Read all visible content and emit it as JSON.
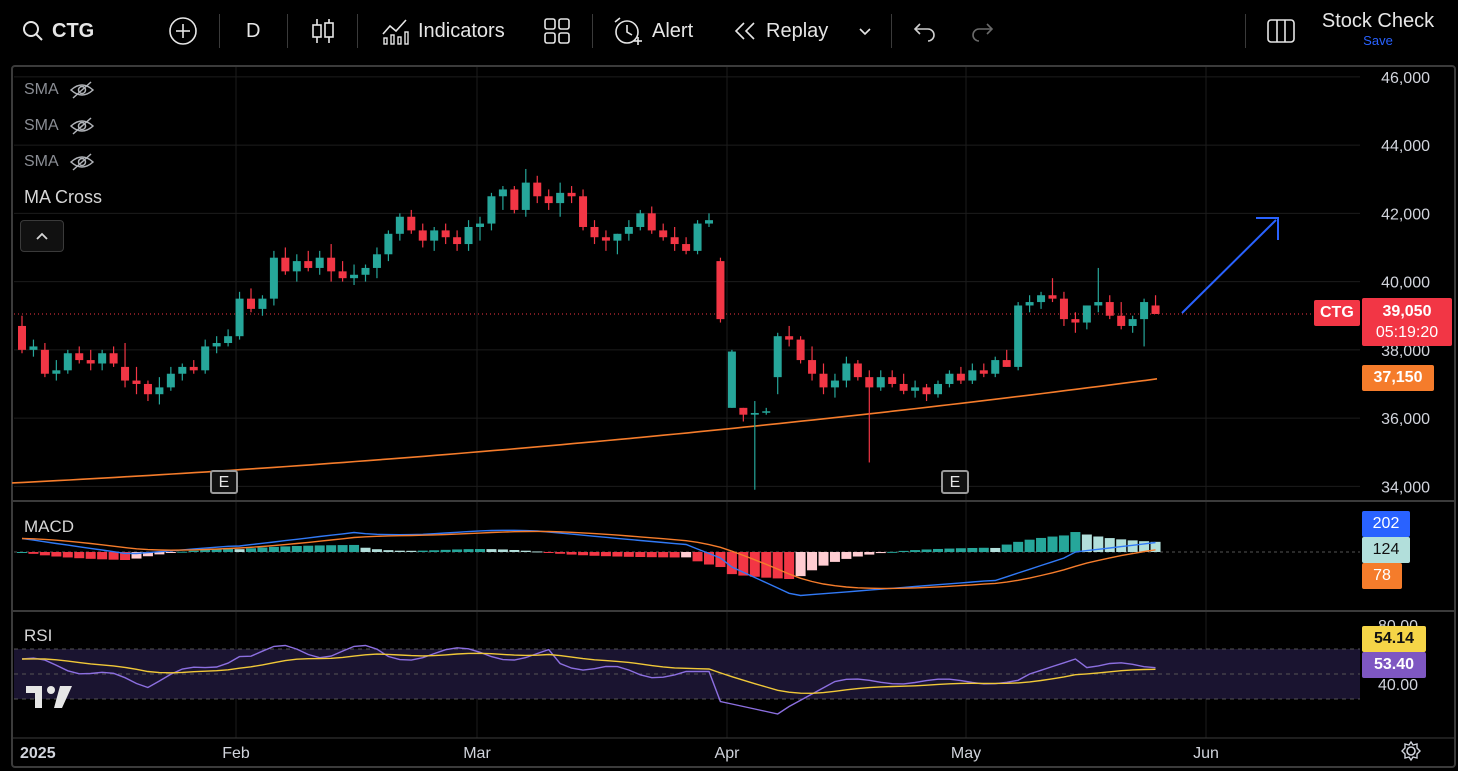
{
  "toolbar": {
    "symbol": "CTG",
    "interval": "D",
    "indicators": "Indicators",
    "alert": "Alert",
    "replay": "Replay",
    "layout_name": "Stock Check",
    "save": "Save"
  },
  "legend": {
    "sma": [
      "SMA",
      "SMA",
      "SMA"
    ],
    "ma_cross": "MA Cross",
    "macd": "MACD",
    "rsi": "RSI"
  },
  "badges": {
    "symbol": "CTG",
    "price": "39,050",
    "countdown": "05:19:20",
    "ma": "37,150",
    "macd_a": "202",
    "macd_b": "124",
    "macd_c": "78",
    "rsi_a": "54.14",
    "rsi_b": "53.40",
    "earnings": "E"
  },
  "colors": {
    "up": "#26a69a",
    "down": "#f23645",
    "ma": "#f57c2b",
    "macd": "#3179f5",
    "signal": "#f57c2b",
    "rsi": "#8c6fe0",
    "rsi_ma": "#f0c838",
    "arrow": "#2962ff"
  },
  "chart_data": {
    "type": "candlestick",
    "symbol": "CTG",
    "interval": "D",
    "y_ticks": [
      34000,
      36000,
      38000,
      40000,
      42000,
      44000,
      46000
    ],
    "y_tick_labels": [
      "34,000",
      "36,000",
      "38,000",
      "40,000",
      "42,000",
      "44,000",
      "46,000"
    ],
    "ylim": [
      33600,
      46200
    ],
    "x_labels": [
      "2025",
      "Feb",
      "Mar",
      "Apr",
      "May",
      "Jun"
    ],
    "last_price": 39050,
    "ma_last": 37150,
    "candles": [
      [
        38700,
        39000,
        37900,
        38000
      ],
      [
        38000,
        38300,
        37800,
        38100
      ],
      [
        38000,
        38200,
        37200,
        37300
      ],
      [
        37300,
        37700,
        37100,
        37400
      ],
      [
        37400,
        38000,
        37300,
        37900
      ],
      [
        37900,
        38100,
        37600,
        37700
      ],
      [
        37700,
        38000,
        37400,
        37600
      ],
      [
        37600,
        38000,
        37400,
        37900
      ],
      [
        37900,
        38100,
        37500,
        37600
      ],
      [
        37500,
        38200,
        36900,
        37100
      ],
      [
        37100,
        37500,
        36700,
        37000
      ],
      [
        37000,
        37100,
        36500,
        36700
      ],
      [
        36700,
        37200,
        36400,
        36900
      ],
      [
        36900,
        37500,
        36800,
        37300
      ],
      [
        37300,
        37600,
        37100,
        37500
      ],
      [
        37500,
        37700,
        37300,
        37400
      ],
      [
        37400,
        38300,
        37300,
        38100
      ],
      [
        38100,
        38400,
        37900,
        38200
      ],
      [
        38200,
        38600,
        38100,
        38400
      ],
      [
        38400,
        39700,
        38300,
        39500
      ],
      [
        39500,
        39800,
        39100,
        39200
      ],
      [
        39200,
        39600,
        39000,
        39500
      ],
      [
        39500,
        40900,
        39300,
        40700
      ],
      [
        40700,
        41000,
        40200,
        40300
      ],
      [
        40300,
        40800,
        40000,
        40600
      ],
      [
        40600,
        40900,
        40300,
        40400
      ],
      [
        40400,
        40900,
        40200,
        40700
      ],
      [
        40700,
        41100,
        40000,
        40300
      ],
      [
        40300,
        40600,
        40000,
        40100
      ],
      [
        40100,
        40500,
        39900,
        40200
      ],
      [
        40200,
        40500,
        40000,
        40400
      ],
      [
        40400,
        41000,
        40100,
        40800
      ],
      [
        40800,
        41500,
        40600,
        41400
      ],
      [
        41400,
        42000,
        41200,
        41900
      ],
      [
        41900,
        42100,
        41400,
        41500
      ],
      [
        41500,
        41700,
        41000,
        41200
      ],
      [
        41200,
        41600,
        40900,
        41500
      ],
      [
        41500,
        41700,
        41100,
        41300
      ],
      [
        41300,
        41500,
        40900,
        41100
      ],
      [
        41100,
        41800,
        40900,
        41600
      ],
      [
        41600,
        41900,
        41200,
        41700
      ],
      [
        41700,
        42600,
        41500,
        42500
      ],
      [
        42500,
        42800,
        42100,
        42700
      ],
      [
        42700,
        42800,
        42000,
        42100
      ],
      [
        42100,
        43300,
        41900,
        42900
      ],
      [
        42900,
        43100,
        42300,
        42500
      ],
      [
        42500,
        42700,
        42100,
        42300
      ],
      [
        42300,
        42900,
        41900,
        42600
      ],
      [
        42600,
        42800,
        42300,
        42500
      ],
      [
        42500,
        42700,
        41500,
        41600
      ],
      [
        41600,
        41800,
        41100,
        41300
      ],
      [
        41300,
        41500,
        40900,
        41200
      ],
      [
        41200,
        41400,
        40800,
        41400
      ],
      [
        41400,
        41800,
        41200,
        41600
      ],
      [
        41600,
        42100,
        41500,
        42000
      ],
      [
        42000,
        42200,
        41400,
        41500
      ],
      [
        41500,
        41700,
        41200,
        41300
      ],
      [
        41300,
        41600,
        40900,
        41100
      ],
      [
        41100,
        41300,
        40800,
        40900
      ],
      [
        40900,
        41800,
        40800,
        41700
      ],
      [
        41700,
        42000,
        41600,
        41800
      ],
      [
        40600,
        40700,
        38800,
        38900
      ],
      [
        36300,
        38000,
        36300,
        37950
      ],
      [
        36300,
        36300,
        35900,
        36100
      ],
      [
        36100,
        36500,
        33900,
        36150
      ],
      [
        36200,
        36300,
        36100,
        36200
      ],
      [
        37200,
        38500,
        36700,
        38400
      ],
      [
        38400,
        38700,
        38100,
        38300
      ],
      [
        38300,
        38400,
        37600,
        37700
      ],
      [
        37700,
        38100,
        37100,
        37300
      ],
      [
        37300,
        37600,
        36700,
        36900
      ],
      [
        36900,
        37300,
        36600,
        37100
      ],
      [
        37100,
        37800,
        36900,
        37600
      ],
      [
        37600,
        37700,
        37100,
        37200
      ],
      [
        37200,
        37400,
        34700,
        36900
      ],
      [
        36900,
        37400,
        36800,
        37200
      ],
      [
        37200,
        37400,
        36900,
        37000
      ],
      [
        37000,
        37300,
        36700,
        36800
      ],
      [
        36800,
        37100,
        36600,
        36900
      ],
      [
        36900,
        37000,
        36500,
        36700
      ],
      [
        36700,
        37100,
        36600,
        37000
      ],
      [
        37000,
        37400,
        36900,
        37300
      ],
      [
        37300,
        37500,
        37000,
        37100
      ],
      [
        37100,
        37600,
        37000,
        37400
      ],
      [
        37400,
        37600,
        37200,
        37300
      ],
      [
        37300,
        37800,
        37200,
        37700
      ],
      [
        37700,
        38000,
        37500,
        37500
      ],
      [
        37500,
        39400,
        37400,
        39300
      ],
      [
        39300,
        39600,
        39100,
        39400
      ],
      [
        39400,
        39700,
        39200,
        39600
      ],
      [
        39600,
        40100,
        39400,
        39500
      ],
      [
        39500,
        39700,
        38700,
        38900
      ],
      [
        38900,
        39100,
        38500,
        38800
      ],
      [
        38800,
        39300,
        38600,
        39300
      ],
      [
        39300,
        40400,
        39100,
        39400
      ],
      [
        39400,
        39600,
        38900,
        39000
      ],
      [
        39000,
        39400,
        38600,
        38700
      ],
      [
        38700,
        39000,
        38500,
        38900
      ],
      [
        38900,
        39500,
        38100,
        39400
      ],
      [
        39300,
        39600,
        39050,
        39050
      ]
    ],
    "ma_line": {
      "start": 34100,
      "end": 37150
    },
    "macd": {
      "labels": [
        "202",
        "124",
        "78"
      ]
    },
    "rsi": {
      "ticks": [
        "80.00",
        "40.00"
      ],
      "values": [
        "54.14",
        "53.40"
      ]
    }
  }
}
